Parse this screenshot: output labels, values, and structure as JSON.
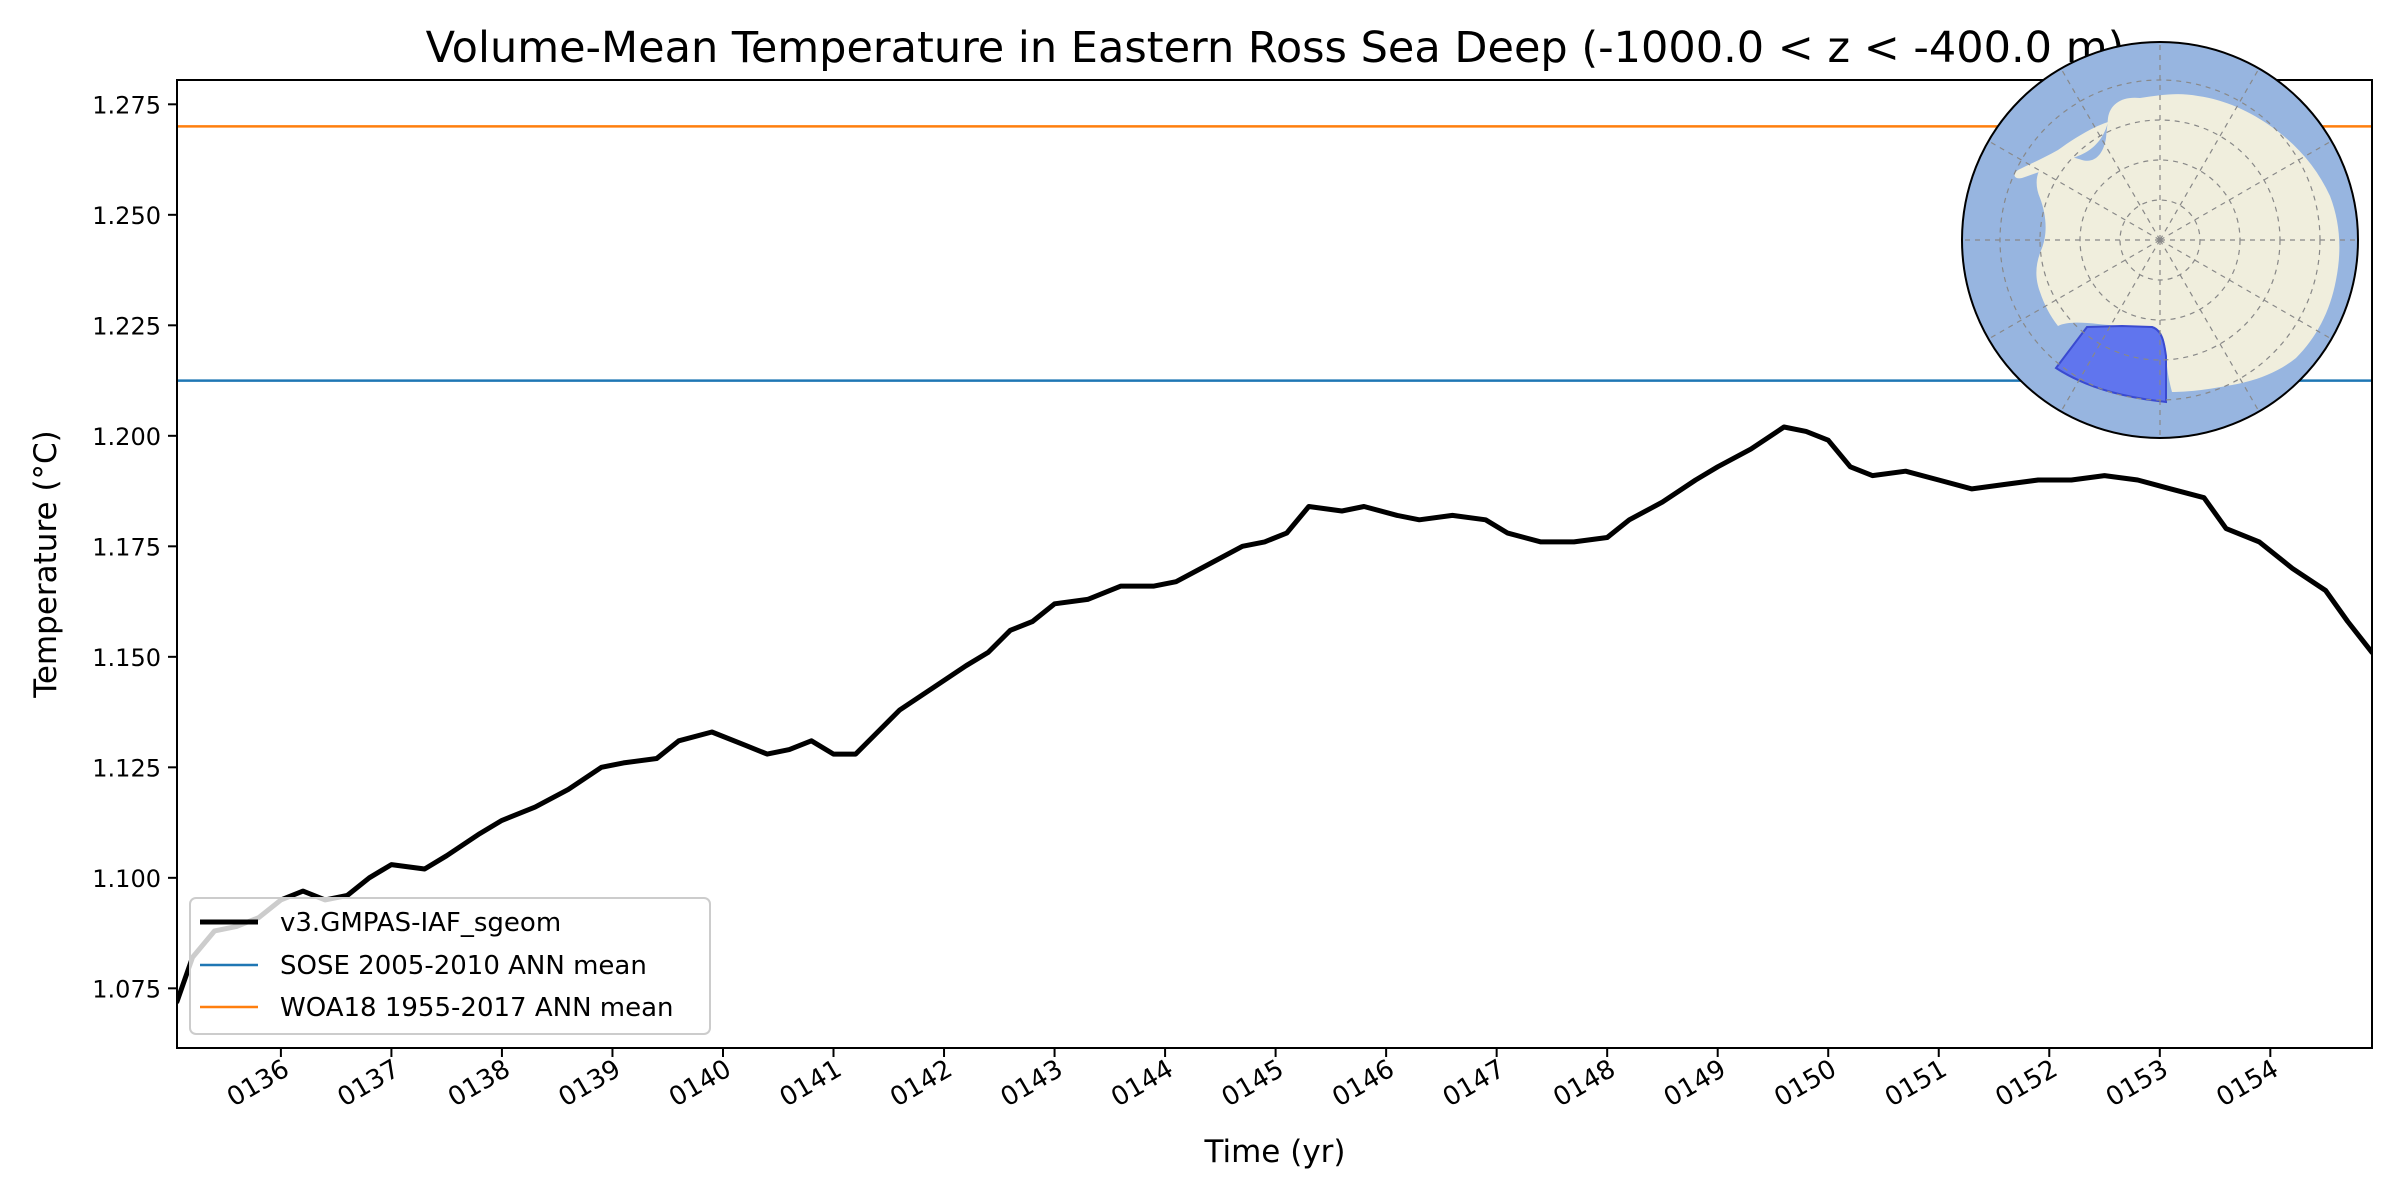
{
  "chart_data": {
    "type": "line",
    "title": "Volume-Mean Temperature in Eastern Ross Sea Deep (-1000.0 < z < -400.0 m)",
    "xlabel": "Time (yr)",
    "ylabel": "Temperature ($^\\circ$C)",
    "ylabel_display": "Temperature (°C)",
    "xlim": [
      135.06,
      154.92
    ],
    "ylim": [
      1.0615,
      1.2805
    ],
    "x_ticks": [
      136,
      137,
      138,
      139,
      140,
      141,
      142,
      143,
      144,
      145,
      146,
      147,
      148,
      149,
      150,
      151,
      152,
      153,
      154
    ],
    "x_tick_labels": [
      "0136",
      "0137",
      "0138",
      "0139",
      "0140",
      "0141",
      "0142",
      "0143",
      "0144",
      "0145",
      "0146",
      "0147",
      "0148",
      "0149",
      "0150",
      "0151",
      "0152",
      "0153",
      "0154"
    ],
    "y_ticks": [
      1.075,
      1.1,
      1.125,
      1.15,
      1.175,
      1.2,
      1.225,
      1.25,
      1.275
    ],
    "y_tick_labels": [
      "1.075",
      "1.100",
      "1.125",
      "1.150",
      "1.175",
      "1.200",
      "1.225",
      "1.250",
      "1.275"
    ],
    "grid": false,
    "legend_position": "lower-left",
    "series": [
      {
        "name": "v3.GMPAS-IAF_sgeom",
        "color": "#000000",
        "x": [
          135.06,
          135.2,
          135.4,
          135.6,
          135.8,
          136.0,
          136.2,
          136.4,
          136.6,
          136.8,
          137.0,
          137.3,
          137.5,
          137.8,
          138.0,
          138.3,
          138.6,
          138.9,
          139.1,
          139.4,
          139.6,
          139.9,
          140.2,
          140.4,
          140.6,
          140.8,
          141.0,
          141.2,
          141.4,
          141.6,
          141.9,
          142.2,
          142.4,
          142.6,
          142.8,
          143.0,
          143.3,
          143.6,
          143.9,
          144.1,
          144.4,
          144.7,
          144.9,
          145.1,
          145.3,
          145.6,
          145.8,
          146.1,
          146.3,
          146.6,
          146.9,
          147.1,
          147.4,
          147.7,
          148.0,
          148.2,
          148.5,
          148.8,
          149.0,
          149.3,
          149.6,
          149.8,
          150.0,
          150.2,
          150.4,
          150.7,
          151.0,
          151.3,
          151.6,
          151.9,
          152.2,
          152.5,
          152.8,
          153.1,
          153.4,
          153.6,
          153.9,
          154.2,
          154.5,
          154.7,
          154.92
        ],
        "values": [
          1.072,
          1.082,
          1.088,
          1.089,
          1.091,
          1.095,
          1.097,
          1.095,
          1.096,
          1.1,
          1.103,
          1.102,
          1.105,
          1.11,
          1.113,
          1.116,
          1.12,
          1.125,
          1.126,
          1.127,
          1.131,
          1.133,
          1.13,
          1.128,
          1.129,
          1.131,
          1.128,
          1.128,
          1.133,
          1.138,
          1.143,
          1.148,
          1.151,
          1.156,
          1.158,
          1.162,
          1.163,
          1.166,
          1.166,
          1.167,
          1.171,
          1.175,
          1.176,
          1.178,
          1.184,
          1.183,
          1.184,
          1.182,
          1.181,
          1.182,
          1.181,
          1.178,
          1.176,
          1.176,
          1.177,
          1.181,
          1.185,
          1.19,
          1.193,
          1.197,
          1.202,
          1.201,
          1.199,
          1.193,
          1.191,
          1.192,
          1.19,
          1.188,
          1.189,
          1.19,
          1.19,
          1.191,
          1.19,
          1.188,
          1.186,
          1.179,
          1.176,
          1.17,
          1.165,
          1.158,
          1.151
        ]
      },
      {
        "name": "SOSE 2005-2010 ANN mean",
        "color": "#1f77b4",
        "constant": 1.2125
      },
      {
        "name": "WOA18 1955-2017 ANN mean",
        "color": "#ff7f0e",
        "constant": 1.27
      }
    ],
    "inset_map": {
      "type": "south-polar-map",
      "region": "Eastern Ross Sea",
      "ocean_color": "#97b5e0",
      "land_color": "#f0eedd",
      "region_color": "#5a6ef0"
    }
  }
}
